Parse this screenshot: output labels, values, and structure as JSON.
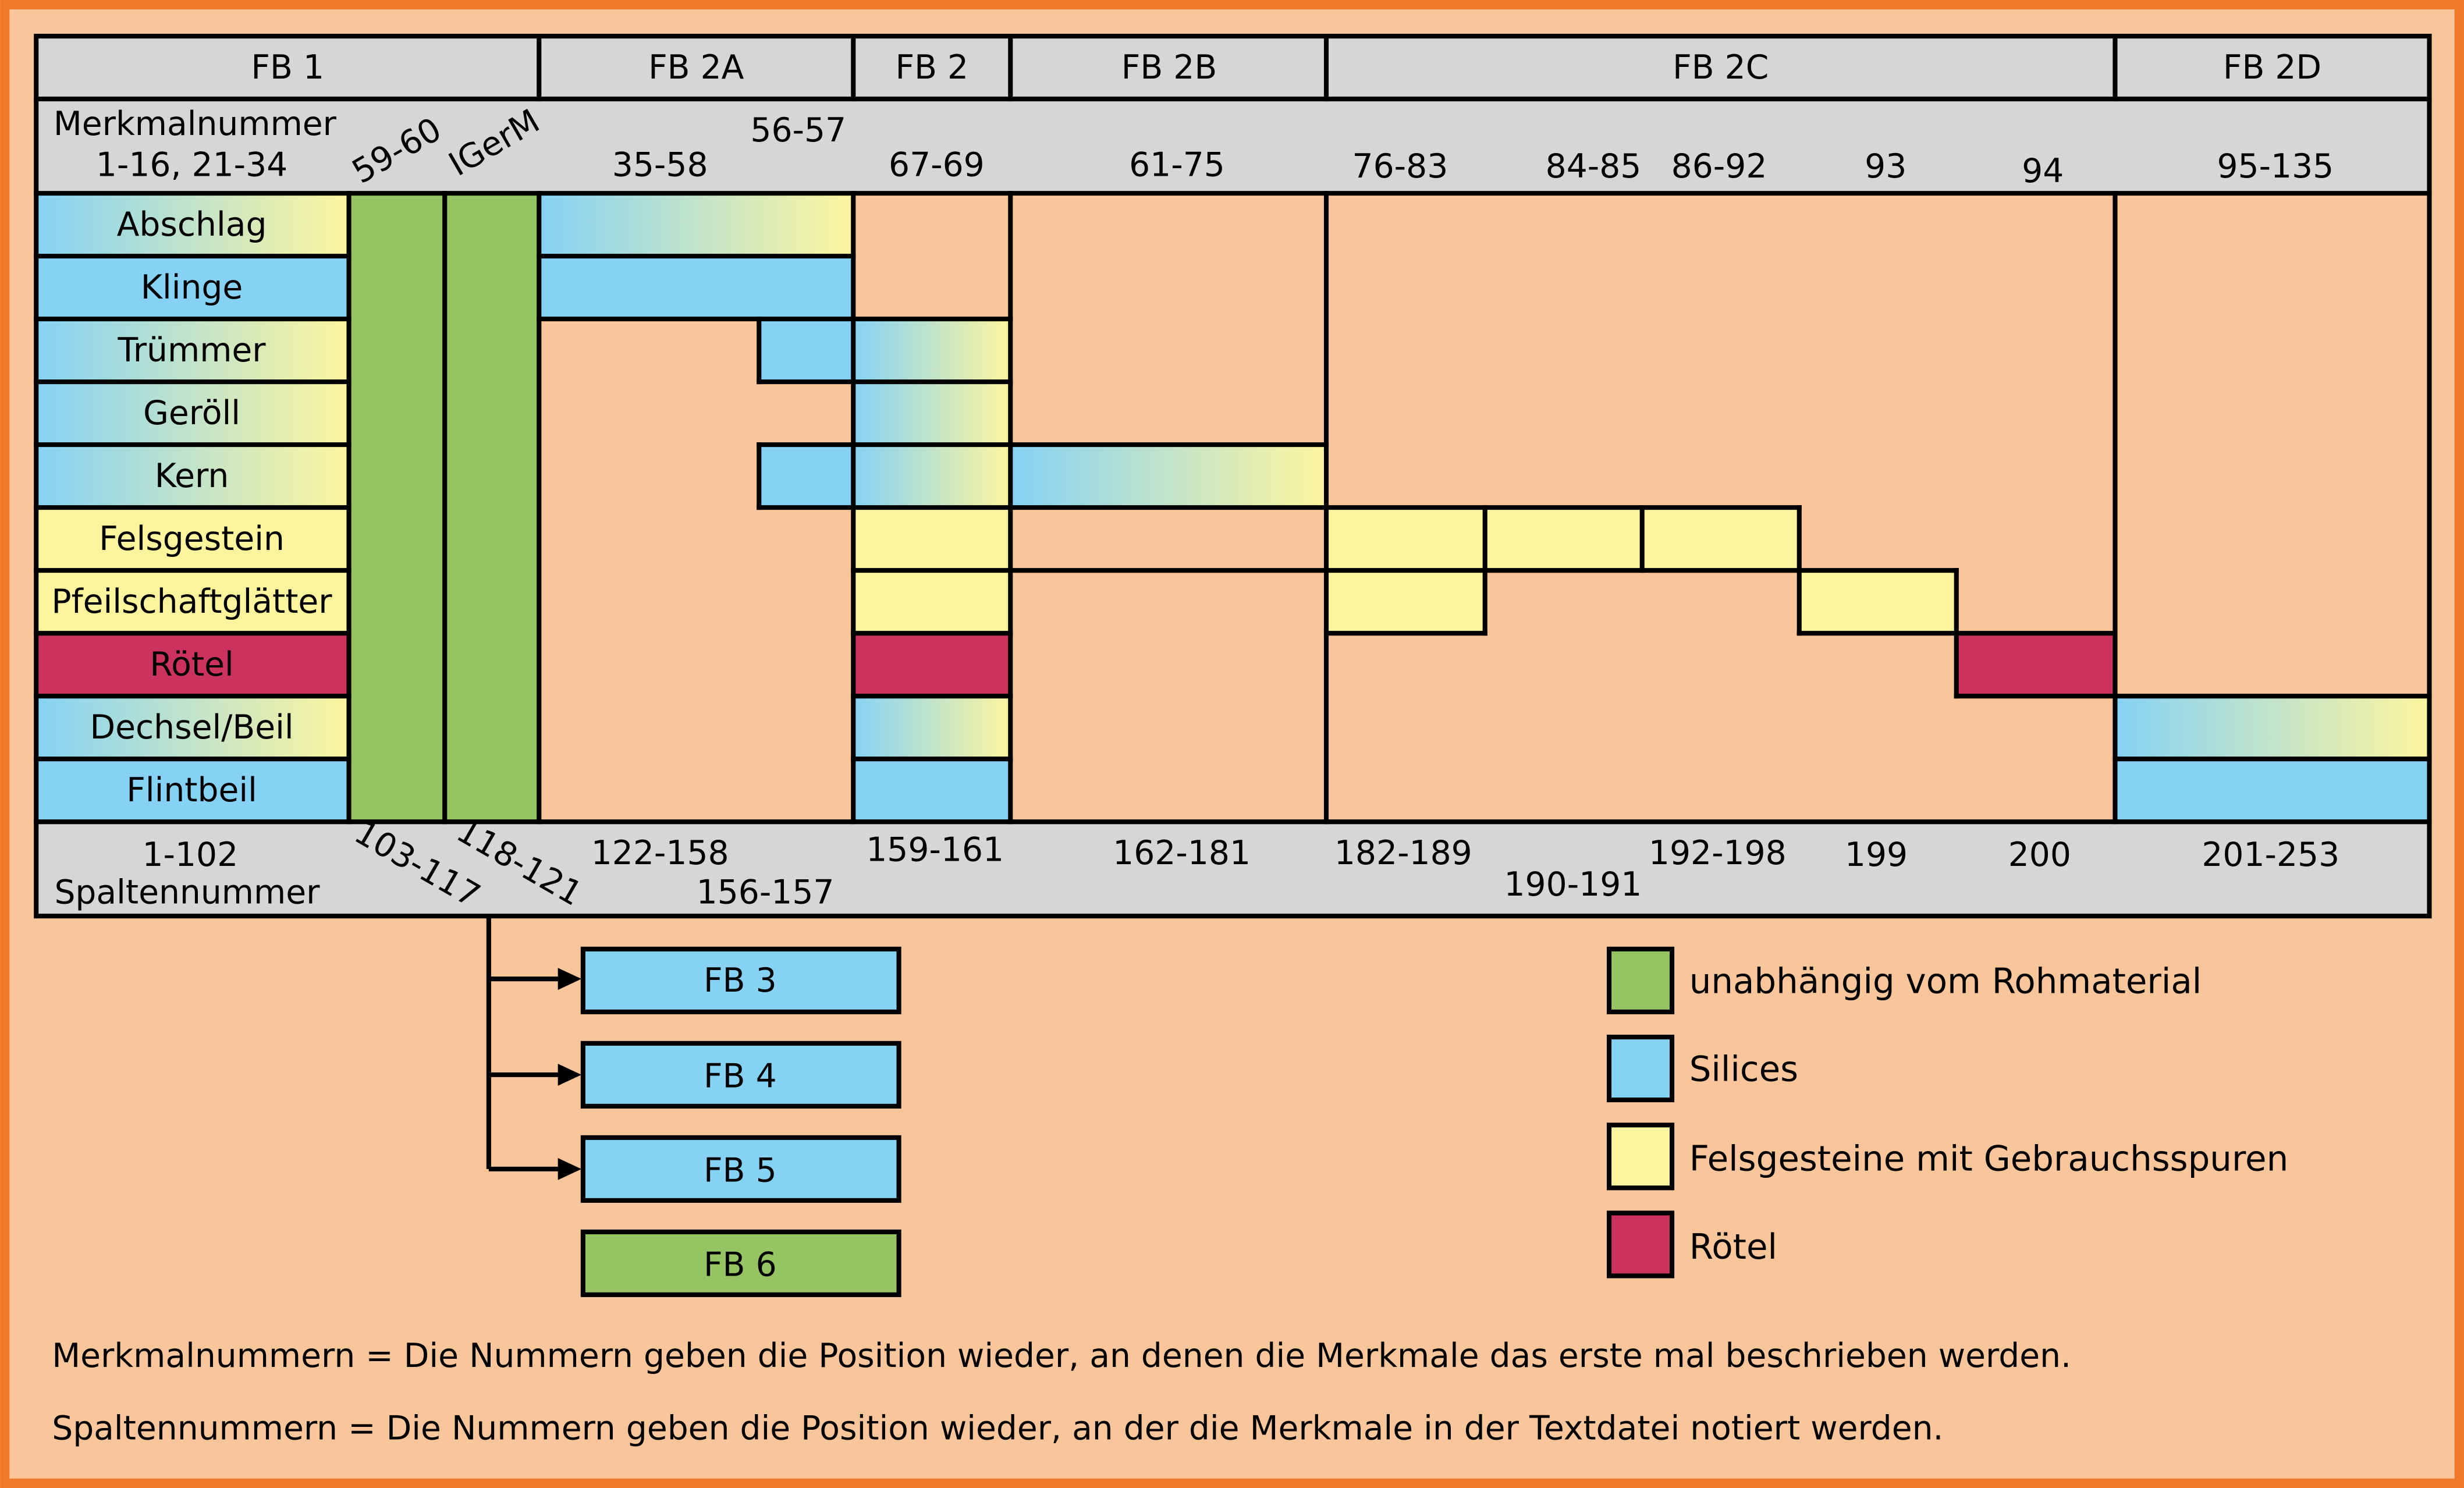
{
  "header_groups": [
    "FB 1",
    "FB 2A",
    "FB 2",
    "FB 2B",
    "FB 2C",
    "FB 2D"
  ],
  "merkmal": {
    "title": "Merkmalnummer",
    "fb1": "1-16, 21-34",
    "c59": "59-60",
    "igerm": "IGerM",
    "r35": "35-58",
    "r56": "56-57",
    "r67": "67-69",
    "r61": "61-75",
    "r76": "76-83",
    "r84": "84-85",
    "r86": "86-92",
    "r93": "93",
    "r94": "94",
    "r95": "95-135"
  },
  "rows": [
    "Abschlag",
    "Klinge",
    "Trümmer",
    "Geröll",
    "Kern",
    "Felsgestein",
    "Pfeilschaftglätter",
    "Rötel",
    "Dechsel/Beil",
    "Flintbeil"
  ],
  "spalten": {
    "title": "Spaltennummer",
    "s1": "1-102",
    "s103": "103-117",
    "s118": "118-121",
    "s122": "122-158",
    "s156": "156-157",
    "s159": "159-161",
    "s162": "162-181",
    "s182": "182-189",
    "s190": "190-191",
    "s192": "192-198",
    "s199": "199",
    "s200": "200",
    "s201": "201-253"
  },
  "fb_boxes": [
    "FB 3",
    "FB 4",
    "FB 5",
    "FB 6"
  ],
  "legend": [
    {
      "label": "unabhängig vom Rohmaterial",
      "color": "#96c463"
    },
    {
      "label": "Silices",
      "color": "#86d2f5"
    },
    {
      "label": "Felsgesteine mit Gebrauchsspuren",
      "color": "#fdf59e"
    },
    {
      "label": "Rötel",
      "color": "#cc325e"
    }
  ],
  "notes": [
    "Merkmalnummern = Die Nummern geben die Position wieder, an denen die Merkmale das erste mal beschrieben werden.",
    "Spaltennummern = Die Nummern geben die Position  wieder, an der die Merkmale in der Textdatei notiert werden."
  ],
  "colors": {
    "background": "#f9c59b",
    "border": "#f07a2a",
    "header": "#d6d6d6",
    "green": "#96c463",
    "blue": "#86d2f5",
    "yellow": "#fdf59e",
    "red": "#cc325e"
  }
}
